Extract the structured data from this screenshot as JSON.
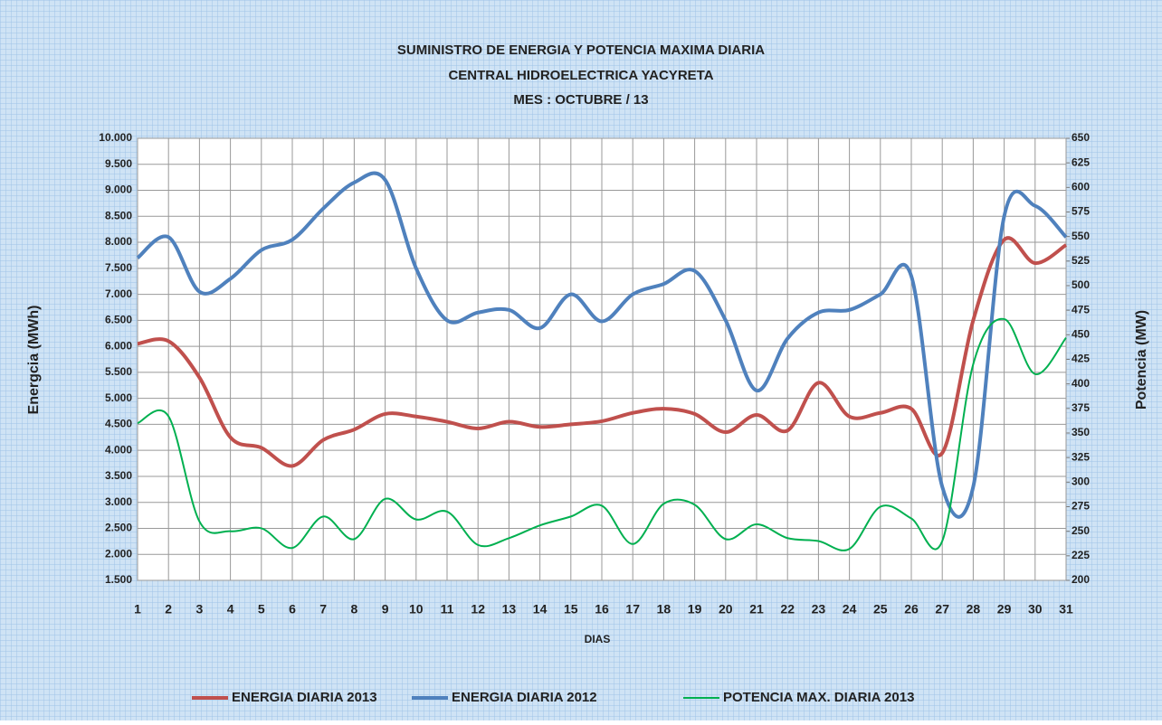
{
  "chart_data": {
    "type": "line",
    "title": [
      "SUMINISTRO DE ENERGIA Y POTENCIA MAXIMA DIARIA",
      "CENTRAL HIDROELECTRICA YACYRETA",
      "MES : OCTUBRE  / 13"
    ],
    "x_label": "DIAS",
    "y_label": "Energcia (MWh)",
    "y2_label": "Potencia (MW)",
    "x": [
      1,
      2,
      3,
      4,
      5,
      6,
      7,
      8,
      9,
      10,
      11,
      12,
      13,
      14,
      15,
      16,
      17,
      18,
      19,
      20,
      21,
      22,
      23,
      24,
      25,
      26,
      27,
      28,
      29,
      30,
      31
    ],
    "xlim": [
      1,
      31
    ],
    "xticks": [
      1,
      2,
      3,
      4,
      5,
      6,
      7,
      8,
      9,
      10,
      11,
      12,
      13,
      14,
      15,
      16,
      17,
      18,
      19,
      20,
      21,
      22,
      23,
      24,
      25,
      26,
      27,
      28,
      29,
      30,
      31
    ],
    "ylim": [
      1500,
      10000
    ],
    "yticks": [
      {
        "value": 1500,
        "label": "1.500"
      },
      {
        "value": 2000,
        "label": "2.000"
      },
      {
        "value": 2500,
        "label": "2.500"
      },
      {
        "value": 3000,
        "label": "3.000"
      },
      {
        "value": 3500,
        "label": "3.500"
      },
      {
        "value": 4000,
        "label": "4.000"
      },
      {
        "value": 4500,
        "label": "4.500"
      },
      {
        "value": 5000,
        "label": "5.000"
      },
      {
        "value": 5500,
        "label": "5.500"
      },
      {
        "value": 6000,
        "label": "6.000"
      },
      {
        "value": 6500,
        "label": "6.500"
      },
      {
        "value": 7000,
        "label": "7.000"
      },
      {
        "value": 7500,
        "label": "7.500"
      },
      {
        "value": 8000,
        "label": "8.000"
      },
      {
        "value": 8500,
        "label": "8.500"
      },
      {
        "value": 9000,
        "label": "9.000"
      },
      {
        "value": 9500,
        "label": "9.500"
      },
      {
        "value": 10000,
        "label": "10.000"
      }
    ],
    "y2lim": [
      200,
      650
    ],
    "y2ticks": [
      200,
      225,
      250,
      275,
      300,
      325,
      350,
      375,
      400,
      425,
      450,
      475,
      500,
      525,
      550,
      575,
      600,
      625,
      650
    ],
    "grid": true,
    "legend": "bottom",
    "series": [
      {
        "name": "ENERGIA DIARIA 2013",
        "color": "#c0504d",
        "values": [
          6050,
          6100,
          5400,
          4250,
          4050,
          3700,
          4200,
          4400,
          4700,
          4650,
          4550,
          4420,
          4550,
          4450,
          4500,
          4560,
          4720,
          4800,
          4700,
          4350,
          4680,
          4380,
          5300,
          4650,
          4720,
          4800,
          3950,
          6500,
          8050,
          7600,
          7950
        ]
      },
      {
        "name": "ENERGIA DIARIA 2012",
        "color": "#4f81bd",
        "values": [
          7700,
          8100,
          7050,
          7300,
          7850,
          8050,
          8650,
          9150,
          9200,
          7500,
          6500,
          6650,
          6700,
          6350,
          7000,
          6480,
          7000,
          7200,
          7450,
          6500,
          5150,
          6150,
          6650,
          6700,
          7000,
          7350,
          3300,
          3300,
          8500,
          8700,
          8100
        ]
      },
      {
        "name": "POTENCIA MAX. DIARIA 2013",
        "color": "#00b050",
        "axis": "y2",
        "values": [
          360,
          367,
          260,
          250,
          253,
          233,
          265,
          242,
          283,
          262,
          270,
          236,
          243,
          256,
          265,
          276,
          237,
          278,
          277,
          242,
          257,
          243,
          240,
          232,
          275,
          263,
          240,
          420,
          466,
          410,
          447
        ]
      }
    ]
  }
}
